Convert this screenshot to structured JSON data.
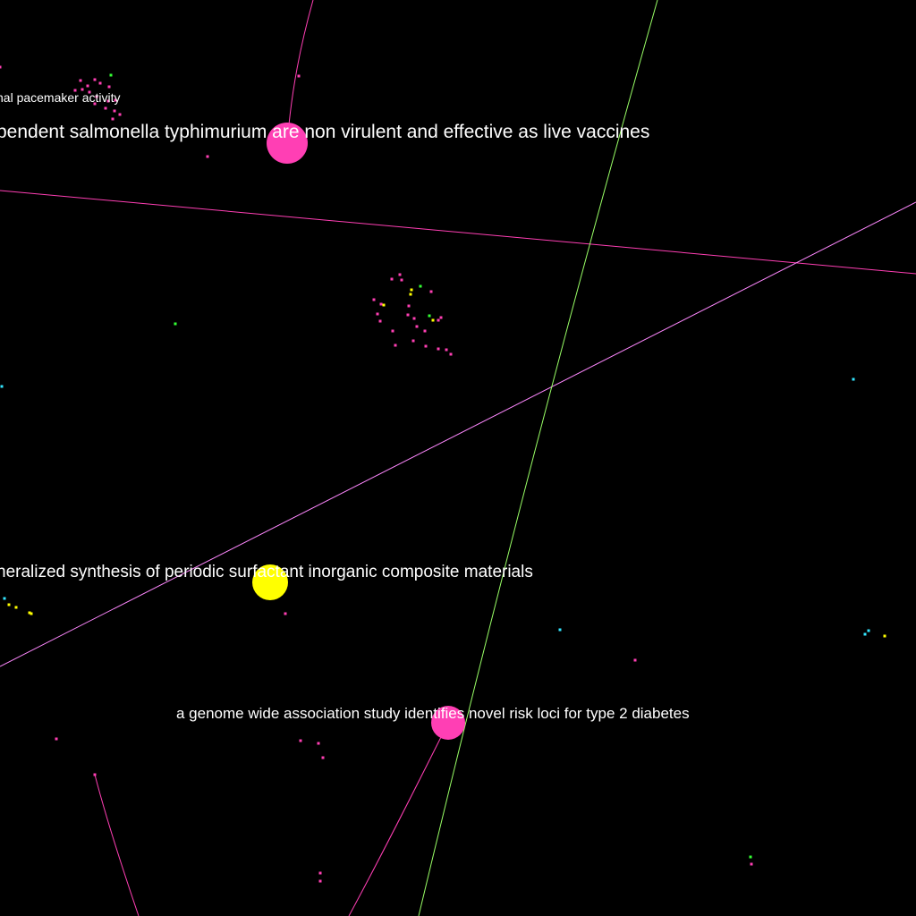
{
  "labels": {
    "pacemaker": "nal pacemaker activity",
    "salmonella": "pendent salmonella typhimurium are non virulent and effective as live vaccines",
    "synthesis": "neralized synthesis of periodic surfactant inorganic composite materials",
    "diabetes": "a genome wide association study identifies novel risk loci for type 2 diabetes"
  },
  "colors": {
    "background": "#000000",
    "pink": "#ff3fb4",
    "yellow": "#ffff00",
    "green": "#33ff33",
    "cyan": "#33e6ff",
    "violet": "#ff88ff",
    "light_green": "#99ff66",
    "text": "#ffffff"
  },
  "node_categories": [
    "pink",
    "yellow",
    "green",
    "cyan"
  ]
}
